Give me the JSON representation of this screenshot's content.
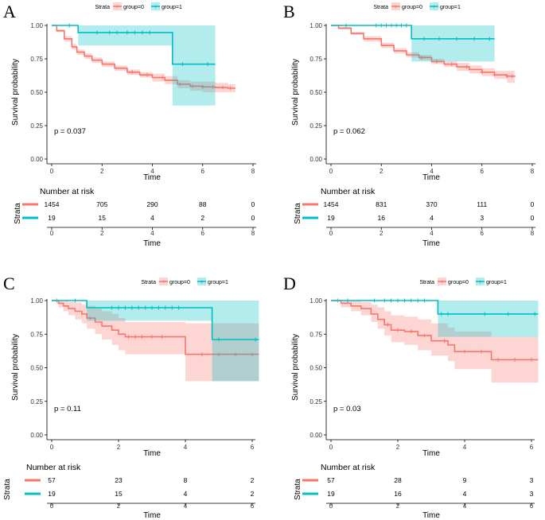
{
  "colors": {
    "group0": "#f8766d",
    "group1": "#00bfc4",
    "band0": "rgba(248,118,109,0.30)",
    "band1": "rgba(0,191,196,0.30)"
  },
  "chart_data": [
    {
      "panel": "A",
      "type": "line",
      "title": "",
      "xlabel": "Time",
      "ylabel": "Survival probability",
      "xlim": [
        0,
        8
      ],
      "ylim": [
        0,
        1
      ],
      "xticks": [
        "0",
        "2",
        "4",
        "6",
        "8"
      ],
      "yticks": [
        "0.00",
        "0.25",
        "0.50",
        "0.75",
        "1.00"
      ],
      "legend": {
        "title": "Strata",
        "items": [
          "group=0",
          "group=1"
        ]
      },
      "pvalue": "p = 0.037",
      "series": [
        {
          "name": "group=0",
          "color": "#f8766d",
          "x": [
            0,
            0.2,
            0.5,
            0.8,
            1.0,
            1.3,
            1.6,
            2.0,
            2.5,
            3.0,
            3.5,
            4.0,
            4.5,
            5.0,
            5.5,
            6.0,
            6.5,
            7.0,
            7.3
          ],
          "y": [
            1.0,
            0.96,
            0.9,
            0.84,
            0.8,
            0.77,
            0.74,
            0.71,
            0.68,
            0.65,
            0.63,
            0.61,
            0.59,
            0.56,
            0.545,
            0.54,
            0.535,
            0.53,
            0.53
          ],
          "lower": [
            1.0,
            0.95,
            0.88,
            0.82,
            0.78,
            0.75,
            0.72,
            0.69,
            0.66,
            0.63,
            0.61,
            0.58,
            0.56,
            0.53,
            0.51,
            0.5,
            0.5,
            0.5,
            0.5
          ],
          "upper": [
            1.0,
            0.97,
            0.92,
            0.86,
            0.82,
            0.79,
            0.76,
            0.73,
            0.7,
            0.67,
            0.65,
            0.64,
            0.62,
            0.59,
            0.58,
            0.58,
            0.57,
            0.56,
            0.56
          ],
          "censor": [
            3.2,
            3.8,
            4.4,
            5.1,
            5.6,
            6.0,
            6.4,
            6.8,
            7.1
          ]
        },
        {
          "name": "group=1",
          "color": "#00bfc4",
          "x": [
            0,
            1.05,
            4.8,
            6.5
          ],
          "y": [
            1.0,
            0.947,
            0.71,
            0.71
          ],
          "lower": [
            1.0,
            0.85,
            0.4,
            0.4
          ],
          "upper": [
            1.0,
            1.0,
            1.0,
            1.0
          ],
          "censor": [
            0.7,
            1.8,
            2.3,
            2.6,
            3.0,
            3.3,
            3.6,
            3.9,
            5.2,
            6.2
          ]
        }
      ],
      "risk_table": {
        "title": "Number at risk",
        "ylabel": "Strata",
        "xlabel": "Time",
        "times": [
          "0",
          "2",
          "4",
          "6",
          "8"
        ],
        "rows": [
          [
            "1454",
            "705",
            "290",
            "88",
            "0"
          ],
          [
            "19",
            "15",
            "4",
            "2",
            "0"
          ]
        ]
      }
    },
    {
      "panel": "B",
      "type": "line",
      "title": "",
      "xlabel": "Time",
      "ylabel": "Survival probability",
      "xlim": [
        0,
        8
      ],
      "ylim": [
        0,
        1
      ],
      "xticks": [
        "0",
        "2",
        "4",
        "6",
        "8"
      ],
      "yticks": [
        "0.00",
        "0.25",
        "0.50",
        "0.75",
        "1.00"
      ],
      "legend": {
        "title": "Strata",
        "items": [
          "group=0",
          "group=1"
        ]
      },
      "pvalue": "p = 0.062",
      "series": [
        {
          "name": "group=0",
          "color": "#f8766d",
          "x": [
            0,
            0.3,
            0.8,
            1.3,
            2.0,
            2.5,
            3.0,
            3.5,
            4.0,
            4.5,
            5.0,
            5.5,
            6.0,
            6.5,
            7.0,
            7.3
          ],
          "y": [
            1.0,
            0.98,
            0.94,
            0.9,
            0.85,
            0.81,
            0.78,
            0.76,
            0.73,
            0.71,
            0.69,
            0.67,
            0.65,
            0.63,
            0.62,
            0.615
          ],
          "lower": [
            1.0,
            0.97,
            0.93,
            0.88,
            0.83,
            0.79,
            0.76,
            0.74,
            0.71,
            0.69,
            0.66,
            0.64,
            0.62,
            0.6,
            0.57,
            0.56
          ],
          "upper": [
            1.0,
            0.99,
            0.95,
            0.92,
            0.87,
            0.83,
            0.8,
            0.78,
            0.75,
            0.73,
            0.72,
            0.7,
            0.68,
            0.66,
            0.66,
            0.66
          ],
          "censor": [
            3.6,
            4.2,
            4.8,
            5.4,
            6.0,
            6.5,
            7.0,
            7.2
          ]
        },
        {
          "name": "group=1",
          "color": "#00bfc4",
          "x": [
            0,
            3.2,
            6.5
          ],
          "y": [
            1.0,
            0.9,
            0.9
          ],
          "lower": [
            1.0,
            0.73,
            0.73
          ],
          "upper": [
            1.0,
            1.0,
            1.0
          ],
          "censor": [
            0.6,
            1.8,
            2.0,
            2.2,
            2.4,
            2.6,
            2.8,
            3.0,
            3.7,
            4.3,
            5.0,
            5.7,
            6.3
          ]
        }
      ],
      "risk_table": {
        "title": "Number at risk",
        "ylabel": "Strata",
        "xlabel": "Time",
        "times": [
          "0",
          "2",
          "4",
          "6",
          "8"
        ],
        "rows": [
          [
            "1454",
            "831",
            "370",
            "111",
            "0"
          ],
          [
            "19",
            "16",
            "4",
            "3",
            "0"
          ]
        ]
      }
    },
    {
      "panel": "C",
      "type": "line",
      "title": "",
      "xlabel": "Time",
      "ylabel": "Survival probability",
      "xlim": [
        0,
        6
      ],
      "ylim": [
        0,
        1
      ],
      "xticks": [
        "0",
        "2",
        "4",
        "6"
      ],
      "yticks": [
        "0.00",
        "0.25",
        "0.50",
        "0.75",
        "1.00"
      ],
      "legend": {
        "title": "Strata",
        "items": [
          "group=0",
          "group=1"
        ]
      },
      "pvalue": "p = 0.11",
      "series": [
        {
          "name": "group=0",
          "color": "#f8766d",
          "x": [
            0,
            0.2,
            0.35,
            0.5,
            0.7,
            0.9,
            1.05,
            1.3,
            1.5,
            1.8,
            2.0,
            2.2,
            3.5,
            4.0,
            6.2
          ],
          "y": [
            1.0,
            0.98,
            0.96,
            0.94,
            0.92,
            0.9,
            0.87,
            0.84,
            0.81,
            0.78,
            0.75,
            0.73,
            0.73,
            0.6,
            0.6
          ],
          "lower": [
            1.0,
            0.95,
            0.92,
            0.89,
            0.86,
            0.83,
            0.79,
            0.75,
            0.71,
            0.67,
            0.63,
            0.6,
            0.6,
            0.4,
            0.4
          ],
          "upper": [
            1.0,
            1.0,
            0.995,
            0.99,
            0.985,
            0.97,
            0.96,
            0.94,
            0.92,
            0.9,
            0.87,
            0.84,
            0.84,
            0.83,
            0.83
          ],
          "censor": [
            0.15,
            1.15,
            2.3,
            2.5,
            2.7,
            3.0,
            3.3,
            4.5,
            5.0,
            5.5,
            6.0
          ]
        },
        {
          "name": "group=1",
          "color": "#00bfc4",
          "x": [
            0,
            1.05,
            4.8,
            6.2
          ],
          "y": [
            1.0,
            0.947,
            0.71,
            0.71
          ],
          "lower": [
            1.0,
            0.85,
            0.4,
            0.4
          ],
          "upper": [
            1.0,
            1.0,
            1.0,
            1.0
          ],
          "censor": [
            0.7,
            1.8,
            2.0,
            2.2,
            2.4,
            2.6,
            2.8,
            3.0,
            3.2,
            3.4,
            3.6,
            3.8,
            5.0,
            6.1
          ]
        }
      ],
      "risk_table": {
        "title": "Number at risk",
        "ylabel": "Strata",
        "xlabel": "Time",
        "times": [
          "0",
          "2",
          "4",
          "6"
        ],
        "rows": [
          [
            "57",
            "23",
            "8",
            "2"
          ],
          [
            "19",
            "15",
            "4",
            "2"
          ]
        ]
      }
    },
    {
      "panel": "D",
      "type": "line",
      "title": "",
      "xlabel": "Time",
      "ylabel": "Survival probability",
      "xlim": [
        0,
        6
      ],
      "ylim": [
        0,
        1
      ],
      "xticks": [
        "0",
        "2",
        "4",
        "6"
      ],
      "yticks": [
        "0.00",
        "0.25",
        "0.50",
        "0.75",
        "1.00"
      ],
      "legend": {
        "title": "Strata",
        "items": [
          "group=0",
          "group=1"
        ]
      },
      "pvalue": "p = 0.03",
      "series": [
        {
          "name": "group=0",
          "color": "#f8766d",
          "x": [
            0,
            0.3,
            0.6,
            0.9,
            1.2,
            1.4,
            1.6,
            1.8,
            2.2,
            2.6,
            3.0,
            3.5,
            3.7,
            4.8,
            6.2
          ],
          "y": [
            1.0,
            0.98,
            0.96,
            0.94,
            0.9,
            0.86,
            0.82,
            0.78,
            0.77,
            0.74,
            0.7,
            0.67,
            0.62,
            0.56,
            0.56
          ],
          "lower": [
            1.0,
            0.95,
            0.92,
            0.89,
            0.84,
            0.79,
            0.74,
            0.69,
            0.67,
            0.63,
            0.59,
            0.55,
            0.49,
            0.39,
            0.39
          ],
          "upper": [
            1.0,
            1.0,
            0.995,
            0.99,
            0.97,
            0.95,
            0.92,
            0.89,
            0.88,
            0.86,
            0.83,
            0.8,
            0.77,
            0.73,
            0.73
          ],
          "censor": [
            0.2,
            1.7,
            2.0,
            2.4,
            2.8,
            3.4,
            4.0,
            4.5,
            5.0,
            5.5,
            6.0
          ]
        },
        {
          "name": "group=1",
          "color": "#00bfc4",
          "x": [
            0,
            3.2,
            6.2
          ],
          "y": [
            1.0,
            0.9,
            0.9
          ],
          "lower": [
            1.0,
            0.73,
            0.73
          ],
          "upper": [
            1.0,
            1.0,
            1.0
          ],
          "censor": [
            0.5,
            1.3,
            1.6,
            1.8,
            2.0,
            2.2,
            2.4,
            2.6,
            2.8,
            3.3,
            3.5,
            4.6,
            5.3,
            6.1
          ]
        }
      ],
      "risk_table": {
        "title": "Number at risk",
        "ylabel": "Strata",
        "xlabel": "Time",
        "times": [
          "0",
          "2",
          "4",
          "6"
        ],
        "rows": [
          [
            "57",
            "28",
            "9",
            "3"
          ],
          [
            "19",
            "16",
            "4",
            "3"
          ]
        ]
      }
    }
  ]
}
